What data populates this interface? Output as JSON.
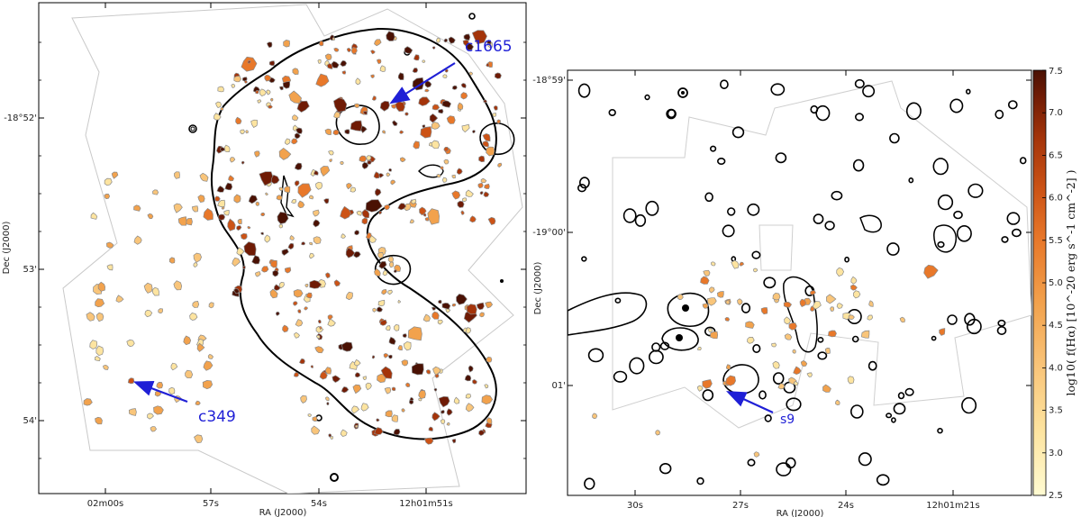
{
  "chart_data": [
    {
      "type": "map",
      "panel": "left",
      "xlabel": "RA (J2000)",
      "ylabel": "Dec (J2000)",
      "x_ticks": [
        "02m00s",
        "57s",
        "54s",
        "12h01m51s"
      ],
      "y_ticks": [
        "-18°52'",
        "53'",
        "54'"
      ],
      "annotations": [
        {
          "label": "c1665"
        },
        {
          "label": "c349"
        }
      ]
    },
    {
      "type": "map",
      "panel": "right",
      "xlabel": "RA (J2000)",
      "ylabel": "Dec (J2000)",
      "x_ticks": [
        "30s",
        "27s",
        "24s",
        "12h01m21s"
      ],
      "y_ticks": [
        "-18°59'",
        "-19°00'",
        "01'"
      ],
      "annotations": [
        {
          "label": "s9"
        }
      ]
    }
  ],
  "colorbar": {
    "label": "log10( f(Hα) [10^-20 erg s^-1 cm^-2] )",
    "min": 2.5,
    "max": 7.5,
    "ticks": [
      "7.5",
      "7.0",
      "6.5",
      "6.0",
      "5.5",
      "5.0",
      "4.5",
      "4.0",
      "3.5",
      "3.0",
      "2.5"
    ],
    "colors": [
      "#fffbd2",
      "#fde4a0",
      "#f9c57a",
      "#f2a24d",
      "#e8782a",
      "#cc5316",
      "#a4340a",
      "#6f1b05",
      "#4a1103"
    ]
  }
}
